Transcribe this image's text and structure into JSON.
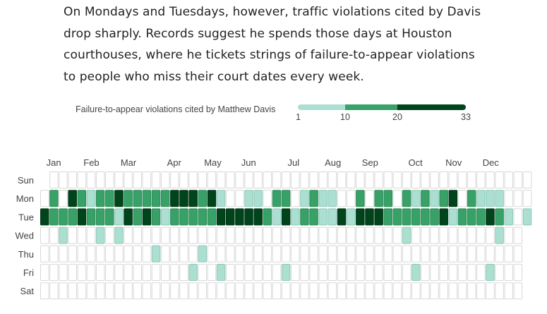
{
  "paragraph": {
    "lines": [
      "On Mondays and Tuesdays, however, traffic violations cited by Davis",
      "drop sharply. Records suggest he spends those days at Houston",
      "courthouses, where he tickets strings of failure-to-appear violations",
      "to people who miss their court dates every week."
    ]
  },
  "legend": {
    "label": "Failure-to-appear violations cited by Matthew Davis",
    "ticks": [
      "1",
      "10",
      "20",
      "33"
    ],
    "bins": [
      {
        "from": 1,
        "to": 10,
        "color": "#abdfd2"
      },
      {
        "from": 10,
        "to": 20,
        "color": "#38a168"
      },
      {
        "from": 20,
        "to": 33,
        "color": "#00441c"
      }
    ]
  },
  "chart_data": {
    "type": "heatmap",
    "title": "Failure-to-appear violations cited by Matthew Davis",
    "description": "Calendar heatmap, one column per week, rows Sun-Sat; cell level 0=none, 1=1-9, 2=10-19, 3=20-33",
    "days": [
      "Sun",
      "Mon",
      "Tue",
      "Wed",
      "Thu",
      "Fri",
      "Sat"
    ],
    "months": [
      {
        "label": "Jan",
        "week": 1
      },
      {
        "label": "Feb",
        "week": 5
      },
      {
        "label": "Mar",
        "week": 9
      },
      {
        "label": "Apr",
        "week": 14
      },
      {
        "label": "May",
        "week": 18
      },
      {
        "label": "Jun",
        "week": 22
      },
      {
        "label": "Jul",
        "week": 27
      },
      {
        "label": "Aug",
        "week": 31
      },
      {
        "label": "Sep",
        "week": 35
      },
      {
        "label": "Oct",
        "week": 40
      },
      {
        "label": "Nov",
        "week": 44
      },
      {
        "label": "Dec",
        "week": 48
      }
    ],
    "num_weeks": 53,
    "first_week_start_day": 1,
    "last_week_end_day": 2,
    "levels": {
      "Mon": [
        0,
        2,
        0,
        3,
        2,
        1,
        2,
        2,
        3,
        2,
        2,
        2,
        2,
        2,
        3,
        3,
        3,
        2,
        3,
        1,
        0,
        0,
        1,
        1,
        0,
        2,
        2,
        0,
        1,
        2,
        1,
        1,
        0,
        0,
        2,
        0,
        2,
        2,
        0,
        2,
        1,
        2,
        1,
        2,
        3,
        0,
        2,
        1,
        1,
        1,
        0,
        0,
        0
      ],
      "Tue": [
        3,
        2,
        2,
        2,
        3,
        2,
        2,
        2,
        1,
        3,
        2,
        3,
        2,
        1,
        2,
        2,
        2,
        2,
        2,
        3,
        3,
        3,
        3,
        3,
        2,
        1,
        3,
        1,
        2,
        2,
        1,
        1,
        3,
        1,
        3,
        3,
        3,
        2,
        2,
        2,
        2,
        2,
        2,
        3,
        1,
        2,
        2,
        2,
        3,
        2,
        1,
        0,
        1
      ],
      "Wed": {
        "2": 1,
        "6": 1,
        "8": 1,
        "39": 1,
        "49": 1
      },
      "Thu": {
        "12": 1,
        "17": 1
      },
      "Fri": {
        "16": 1,
        "19": 1,
        "26": 1,
        "40": 1,
        "48": 1
      },
      "Sat": {},
      "Sun": {}
    },
    "colors": [
      "#ffffff",
      "#abdfd2",
      "#38a168",
      "#00441c"
    ],
    "legend_placement": "top-right"
  }
}
